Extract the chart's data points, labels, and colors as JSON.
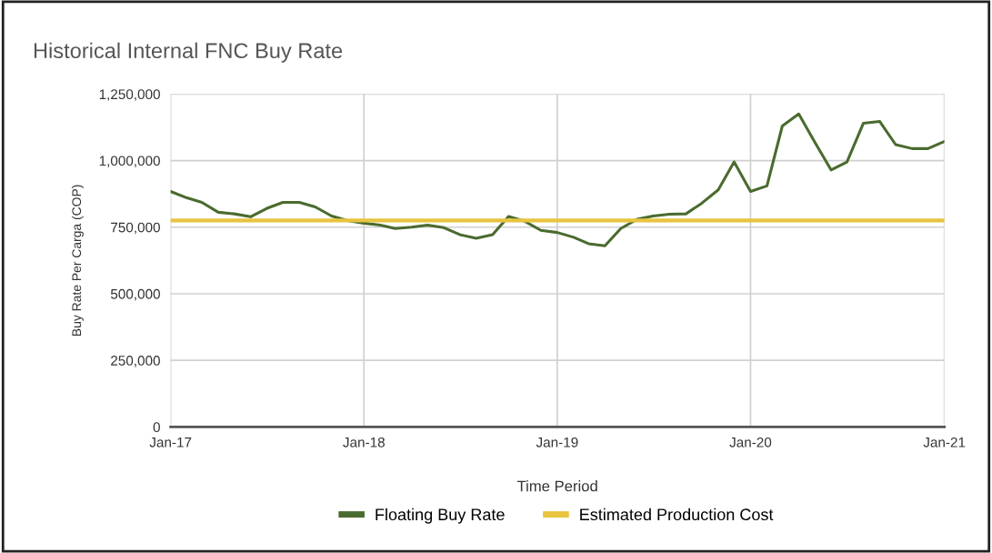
{
  "chart_data": {
    "type": "line",
    "title": "Historical Internal FNC Buy Rate",
    "xlabel": "Time Period",
    "ylabel": "Buy Rate Per Carga (COP)",
    "x": [
      "2017-01",
      "2017-02",
      "2017-03",
      "2017-04",
      "2017-05",
      "2017-06",
      "2017-07",
      "2017-08",
      "2017-09",
      "2017-10",
      "2017-11",
      "2017-12",
      "2018-01",
      "2018-02",
      "2018-03",
      "2018-04",
      "2018-05",
      "2018-06",
      "2018-07",
      "2018-08",
      "2018-09",
      "2018-10",
      "2018-11",
      "2018-12",
      "2019-01",
      "2019-02",
      "2019-03",
      "2019-04",
      "2019-05",
      "2019-06",
      "2019-07",
      "2019-08",
      "2019-09",
      "2019-10",
      "2019-11",
      "2019-12",
      "2020-01",
      "2020-02",
      "2020-03",
      "2020-04",
      "2020-05",
      "2020-06",
      "2020-07",
      "2020-08",
      "2020-09",
      "2020-10",
      "2020-11",
      "2020-12",
      "2021-01"
    ],
    "series": [
      {
        "name": "Floating Buy Rate",
        "color": "#4a6b2e",
        "values": [
          884000,
          860000,
          843000,
          806000,
          800000,
          789000,
          820000,
          843000,
          843000,
          826000,
          792000,
          775000,
          765000,
          758000,
          745000,
          750000,
          758000,
          748000,
          722000,
          708000,
          722000,
          790000,
          772000,
          738000,
          730000,
          712000,
          688000,
          680000,
          745000,
          780000,
          792000,
          799000,
          800000,
          840000,
          890000,
          995000,
          884000,
          905000,
          1130000,
          1175000,
          1070000,
          965000,
          995000,
          1140000,
          1147000,
          1060000,
          1045000,
          1045000,
          1072000
        ]
      },
      {
        "name": "Estimated Production Cost",
        "color": "#e8c440",
        "x": [
          "2017-01",
          "2021-01"
        ],
        "values": [
          775000,
          775000
        ]
      }
    ],
    "xlim": [
      "2017-01",
      "2021-01"
    ],
    "xticks": [
      {
        "value": "2017-01",
        "label": "Jan-17"
      },
      {
        "value": "2018-01",
        "label": "Jan-18"
      },
      {
        "value": "2019-01",
        "label": "Jan-19"
      },
      {
        "value": "2020-01",
        "label": "Jan-20"
      },
      {
        "value": "2021-01",
        "label": "Jan-21"
      }
    ],
    "ylim": [
      0,
      1250000
    ],
    "yticks": [
      {
        "value": 0,
        "label": "0"
      },
      {
        "value": 250000,
        "label": "250,000"
      },
      {
        "value": 500000,
        "label": "500,000"
      },
      {
        "value": 750000,
        "label": "750,000"
      },
      {
        "value": 1000000,
        "label": "1,000,000"
      },
      {
        "value": 1250000,
        "label": "1,250,000"
      }
    ],
    "grid": true,
    "legend": "bottom",
    "marker": "none",
    "line_style": "solid"
  }
}
